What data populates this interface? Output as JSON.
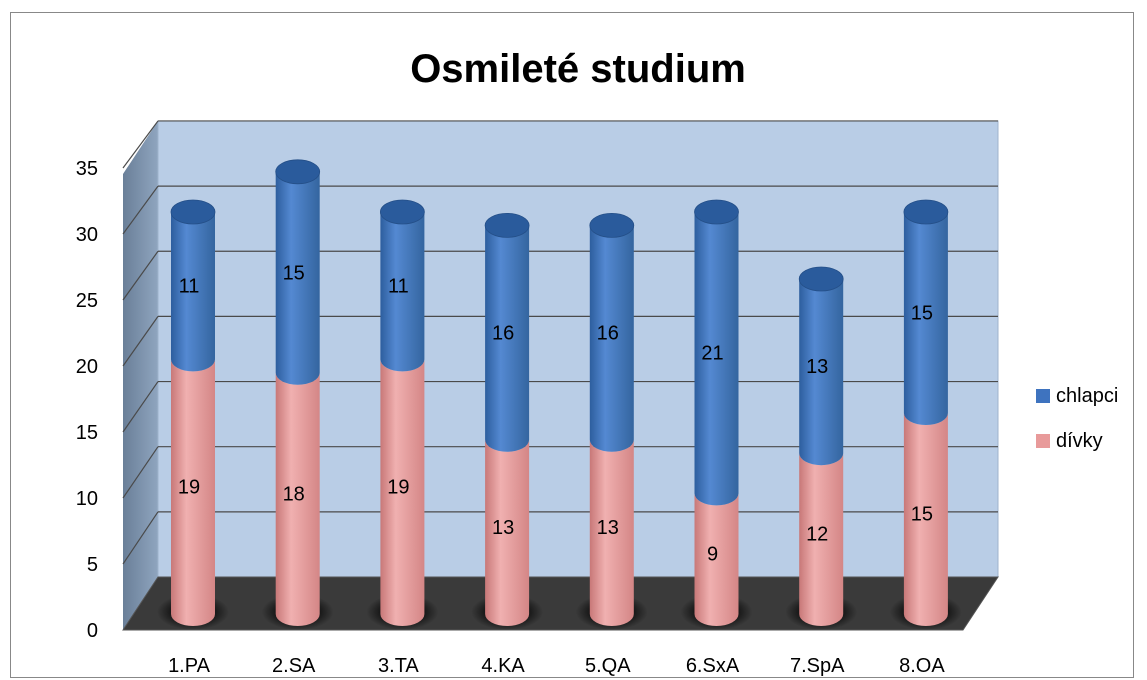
{
  "chart_data": {
    "type": "bar",
    "stacked": true,
    "style": "3d-cylinder",
    "title": "Osmileté studium",
    "categories": [
      "1.PA",
      "2.SA",
      "3.TA",
      "4.KA",
      "5.QA",
      "6.SxA",
      "7.SpA",
      "8.OA"
    ],
    "series": [
      {
        "name": "dívky",
        "values": [
          19,
          18,
          19,
          13,
          13,
          9,
          12,
          15
        ],
        "color": "#e89a9a"
      },
      {
        "name": "chlapci",
        "values": [
          11,
          15,
          11,
          16,
          16,
          21,
          13,
          15
        ],
        "color": "#3e73bf"
      }
    ],
    "ylim": [
      0,
      35
    ],
    "yticks": [
      0,
      5,
      10,
      15,
      20,
      25,
      30,
      35
    ],
    "grid": true,
    "legend_position": "right",
    "legend_order": [
      "chlapci",
      "dívky"
    ],
    "wall_color": "#b9cde6",
    "floor_color": "#3a3a3a"
  }
}
